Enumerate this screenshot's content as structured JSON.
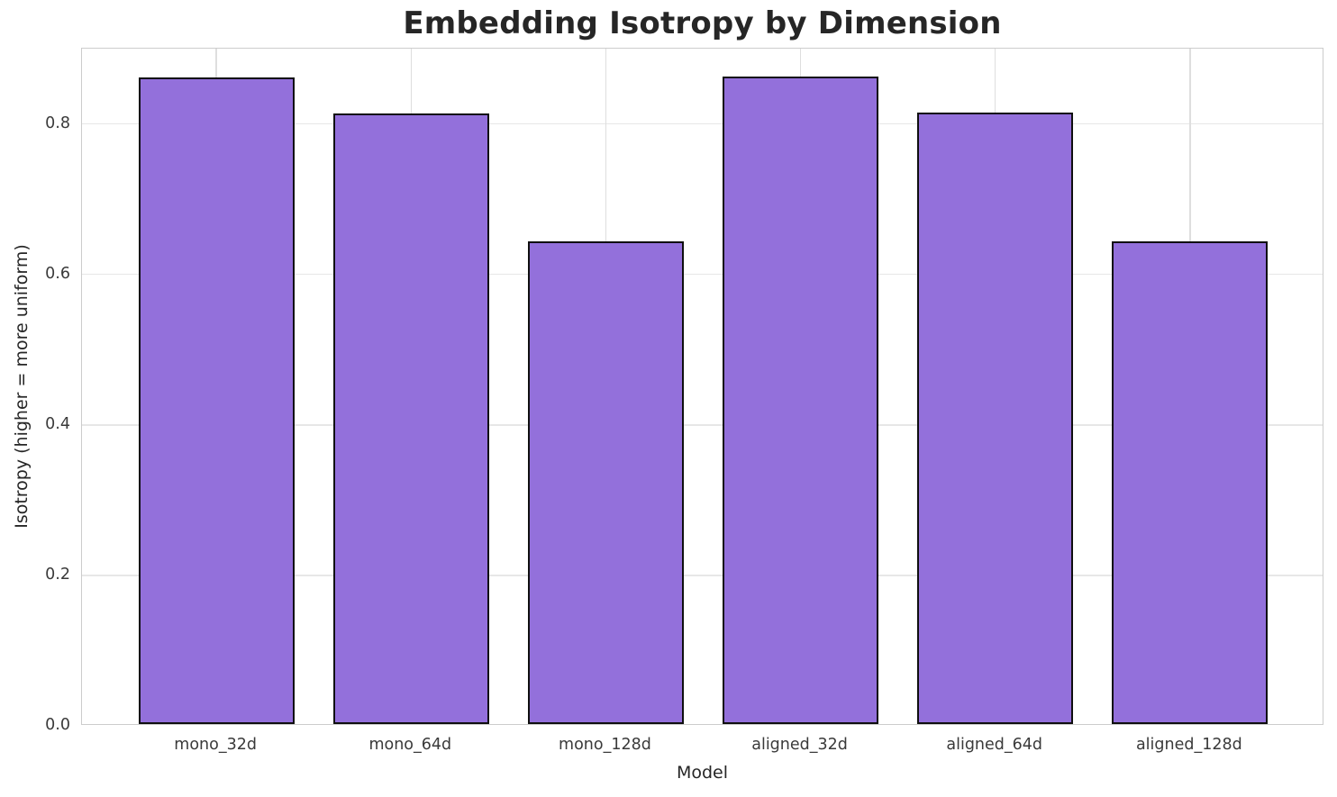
{
  "chart_data": {
    "type": "bar",
    "title": "Embedding Isotropy by Dimension",
    "xlabel": "Model",
    "ylabel": "Isotropy (higher = more uniform)",
    "categories": [
      "mono_32d",
      "mono_64d",
      "mono_128d",
      "aligned_32d",
      "aligned_64d",
      "aligned_128d"
    ],
    "values": [
      0.859,
      0.812,
      0.641,
      0.86,
      0.813,
      0.642
    ],
    "yticks": [
      0.0,
      0.2,
      0.4,
      0.6,
      0.8
    ],
    "ytick_labels": [
      "0.0",
      "0.2",
      "0.4",
      "0.6",
      "0.8"
    ],
    "ylim": [
      0,
      0.9
    ],
    "grid": "both",
    "legend_position": "none",
    "bar_fill_color": "#9370DB",
    "bar_edge_color": "#0f0f0f",
    "grid_color": "#e7e7e7",
    "spine_color": "#cccccc",
    "text_color": "#262626"
  }
}
